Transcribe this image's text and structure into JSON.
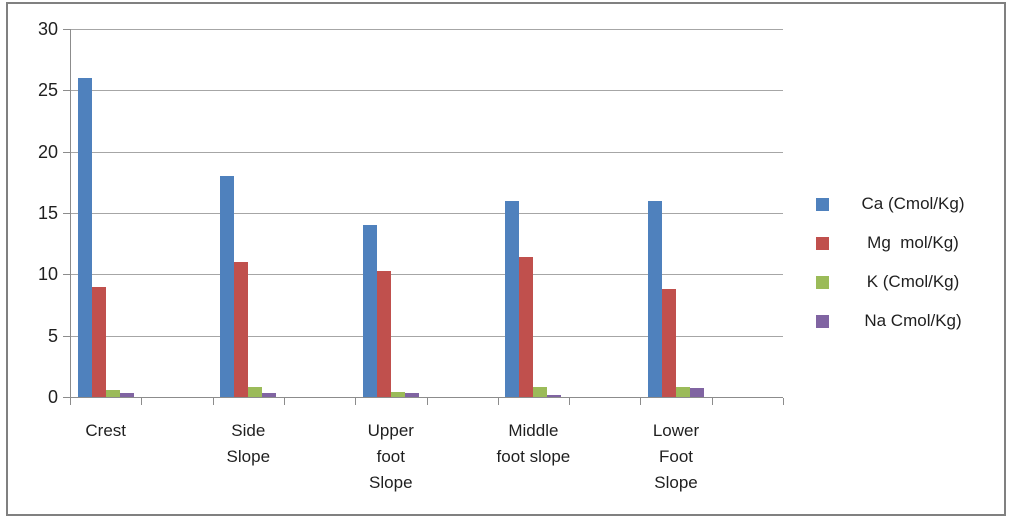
{
  "chart_data": {
    "type": "bar",
    "title": "",
    "xlabel": "",
    "ylabel": "",
    "categories": [
      "Crest",
      "Side Slope",
      "Upper foot Slope",
      "Middle foot slope",
      "Lower Foot Slope"
    ],
    "series": [
      {
        "name": "Ca (Cmol/Kg)",
        "color": "#4F81BD",
        "values": [
          26,
          18,
          14,
          16,
          16
        ]
      },
      {
        "name": "Mg  mol/Kg)",
        "color": "#C0504D",
        "values": [
          9,
          11,
          10.3,
          11.4,
          8.8
        ]
      },
      {
        "name": "K (Cmol/Kg)",
        "color": "#9BBB59",
        "values": [
          0.6,
          0.8,
          0.4,
          0.8,
          0.8
        ]
      },
      {
        "name": "Na Cmol/Kg)",
        "color": "#8064A2",
        "values": [
          0.3,
          0.3,
          0.3,
          0.2,
          0.7
        ]
      }
    ],
    "yticks": [
      0,
      5,
      10,
      15,
      20,
      25,
      30
    ],
    "ylim": [
      0,
      30
    ],
    "grid": true,
    "legend_position": "right",
    "colors": {
      "gridline": "#a6a6a6",
      "axis": "#8c8c8c",
      "border": "#808080",
      "text": "#1f1f1f",
      "background": "#ffffff"
    }
  }
}
